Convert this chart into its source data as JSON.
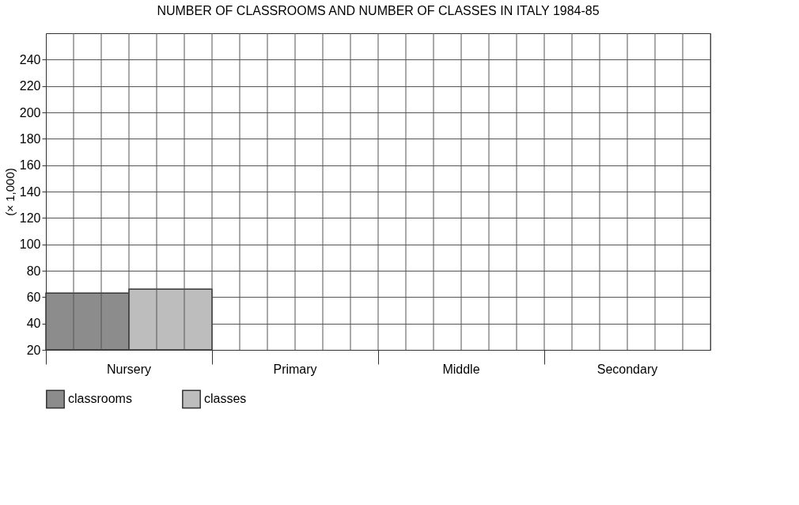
{
  "chart_data": {
    "type": "bar",
    "title": "NUMBER OF CLASSROOMS AND NUMBER OF CLASSES IN ITALY 1984-85",
    "ylabel": "(× 1,000)",
    "categories": [
      "Nursery",
      "Primary",
      "Middle",
      "Secondary"
    ],
    "series": [
      {
        "name": "classrooms",
        "color": "#8c8c8c",
        "values": [
          63,
          null,
          null,
          null
        ]
      },
      {
        "name": "classes",
        "color": "#bdbdbd",
        "values": [
          66,
          null,
          null,
          null
        ]
      }
    ],
    "ylim": [
      20,
      260
    ],
    "yticks": [
      20,
      40,
      60,
      80,
      100,
      120,
      140,
      160,
      180,
      200,
      220,
      240
    ],
    "grid": true,
    "legend": "bottom"
  }
}
